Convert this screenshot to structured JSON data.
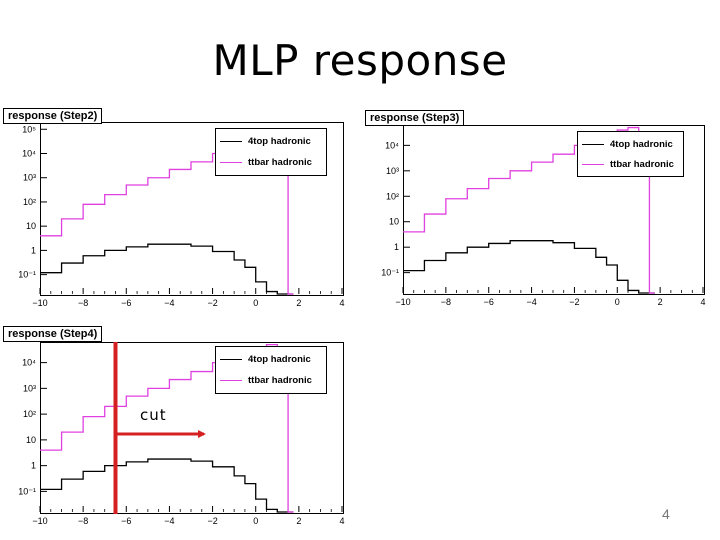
{
  "slide": {
    "title": "MLP  response",
    "page_number": "4",
    "annotation_text": "cut",
    "cut_x": -6.5
  },
  "colors": {
    "signal": "#000000",
    "background": "#e040e0",
    "annotation": "#d42020"
  },
  "chart_data": [
    {
      "type": "line",
      "title": "response (Step2)",
      "xlim": [
        -10,
        4
      ],
      "xticks": [
        "−10",
        "−8",
        "−6",
        "−4",
        "−2",
        "0",
        "2",
        "4"
      ],
      "log_y": true,
      "ylim_log10": [
        -1.8,
        5.3
      ],
      "yticks": [
        {
          "label": "10⁻¹",
          "value": 0.1
        },
        {
          "label": "1",
          "value": 1
        },
        {
          "label": "10",
          "value": 10
        },
        {
          "label": "10²",
          "value": 100
        },
        {
          "label": "10³",
          "value": 1000
        },
        {
          "label": "10⁴",
          "value": 10000
        },
        {
          "label": "10⁵",
          "value": 100000
        }
      ],
      "legend": {
        "position": "top-right"
      },
      "series": [
        {
          "name": "4top hadronic",
          "color": "#000000",
          "x": [
            -10,
            -9,
            -8,
            -7,
            -6,
            -5,
            -4,
            -3,
            -2,
            -1,
            -0.5,
            0,
            0.5,
            1,
            1.5
          ],
          "y": [
            0.12,
            0.3,
            0.6,
            1.0,
            1.4,
            1.8,
            1.8,
            1.5,
            0.9,
            0.4,
            0.2,
            0.05,
            0.02,
            0.01,
            0.005
          ]
        },
        {
          "name": "ttbar hadronic",
          "color": "#e040e0",
          "x": [
            -10,
            -9,
            -8,
            -7,
            -6,
            -5,
            -4,
            -3,
            -2,
            -1,
            0,
            0.5,
            1,
            1.5
          ],
          "y": [
            4,
            20,
            80,
            200,
            500,
            1000,
            2200,
            4500,
            10000,
            20000,
            60000,
            100000,
            10000,
            0.003
          ]
        }
      ]
    },
    {
      "type": "line",
      "title": "response (Step3)",
      "xlim": [
        -10,
        4
      ],
      "xticks": [
        "−10",
        "−8",
        "−6",
        "−4",
        "−2",
        "0",
        "2",
        "4"
      ],
      "log_y": true,
      "ylim_log10": [
        -1.8,
        4.8
      ],
      "yticks": [
        {
          "label": "10⁻¹",
          "value": 0.1
        },
        {
          "label": "1",
          "value": 1
        },
        {
          "label": "10",
          "value": 10
        },
        {
          "label": "10²",
          "value": 100
        },
        {
          "label": "10³",
          "value": 1000
        },
        {
          "label": "10⁴",
          "value": 10000
        }
      ],
      "legend": {
        "position": "top-right"
      },
      "series": [
        {
          "name": "4top hadronic",
          "color": "#000000",
          "x": [
            -10,
            -9,
            -8,
            -7,
            -6,
            -5,
            -4,
            -3,
            -2,
            -1,
            -0.5,
            0,
            0.5,
            1,
            1.5
          ],
          "y": [
            0.12,
            0.3,
            0.6,
            1.0,
            1.4,
            1.8,
            1.8,
            1.5,
            0.9,
            0.4,
            0.2,
            0.05,
            0.02,
            0.01,
            0.005
          ]
        },
        {
          "name": "ttbar hadronic",
          "color": "#e040e0",
          "x": [
            -10,
            -9,
            -8,
            -7,
            -6,
            -5,
            -4,
            -3,
            -2,
            -1,
            0,
            0.5,
            1,
            1.5
          ],
          "y": [
            4,
            20,
            80,
            200,
            500,
            1000,
            2200,
            4500,
            10000,
            20000,
            40000,
            50000,
            5000,
            0.003
          ]
        }
      ]
    },
    {
      "type": "line",
      "title": "response (Step4)",
      "xlim": [
        -10,
        4
      ],
      "xticks": [
        "−10",
        "−8",
        "−6",
        "−4",
        "−2",
        "0",
        "2",
        "4"
      ],
      "log_y": true,
      "ylim_log10": [
        -1.8,
        4.8
      ],
      "yticks": [
        {
          "label": "10⁻¹",
          "value": 0.1
        },
        {
          "label": "1",
          "value": 1
        },
        {
          "label": "10",
          "value": 10
        },
        {
          "label": "10²",
          "value": 100
        },
        {
          "label": "10³",
          "value": 1000
        },
        {
          "label": "10⁴",
          "value": 10000
        }
      ],
      "legend": {
        "position": "top-right"
      },
      "series": [
        {
          "name": "4top hadronic",
          "color": "#000000",
          "x": [
            -10,
            -9,
            -8,
            -7,
            -6,
            -5,
            -4,
            -3,
            -2,
            -1,
            -0.5,
            0,
            0.5,
            1,
            1.5
          ],
          "y": [
            0.12,
            0.3,
            0.6,
            1.0,
            1.4,
            1.8,
            1.8,
            1.5,
            0.9,
            0.4,
            0.2,
            0.05,
            0.02,
            0.01,
            0.005
          ]
        },
        {
          "name": "ttbar hadronic",
          "color": "#e040e0",
          "x": [
            -10,
            -9,
            -8,
            -7,
            -6,
            -5,
            -4,
            -3,
            -2,
            -1,
            0,
            0.5,
            1,
            1.5
          ],
          "y": [
            4,
            20,
            80,
            200,
            500,
            1000,
            2200,
            4500,
            10000,
            20000,
            40000,
            50000,
            5000,
            0.003
          ]
        }
      ]
    }
  ]
}
